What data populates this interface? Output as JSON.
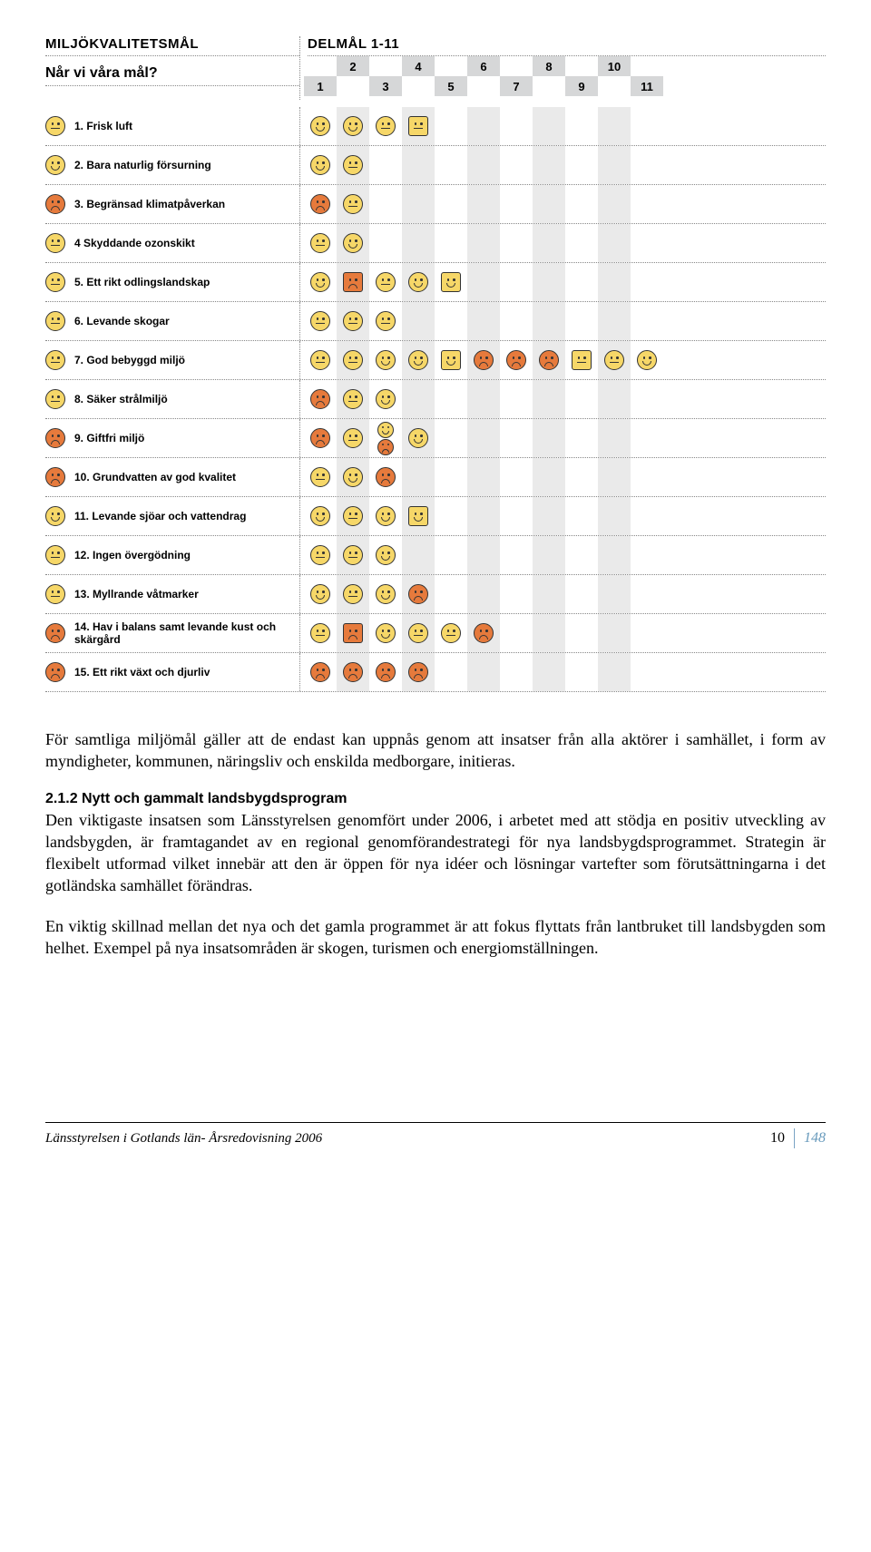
{
  "colors": {
    "yellow": "#f6d768",
    "orange": "#e67a3c",
    "stripe": "#eaeaea",
    "num_bg": "#d6d7d8",
    "divider": "#7aa3c4",
    "page_total": "#6699bb"
  },
  "chart": {
    "title_left": "MILJÖKVALITETSMÅL",
    "title_right": "DELMÅL 1-11",
    "subtitle": "Når vi våra mål?",
    "numbers_top": [
      "2",
      "4",
      "6",
      "8",
      "10"
    ],
    "numbers_bottom": [
      "1",
      "3",
      "5",
      "7",
      "9",
      "11"
    ],
    "rows": [
      {
        "label": "1. Frisk luft",
        "lead": {
          "shape": "circle",
          "color": "yellow",
          "mood": "neutral"
        },
        "cells": [
          {
            "shape": "circle",
            "color": "yellow",
            "mood": "happy"
          },
          {
            "shape": "circle",
            "color": "yellow",
            "mood": "happy"
          },
          {
            "shape": "circle",
            "color": "yellow",
            "mood": "neutral"
          },
          {
            "shape": "square",
            "color": "yellow",
            "mood": "neutral"
          }
        ]
      },
      {
        "label": "2. Bara naturlig försurning",
        "lead": {
          "shape": "circle",
          "color": "yellow",
          "mood": "happy"
        },
        "cells": [
          {
            "shape": "circle",
            "color": "yellow",
            "mood": "happy"
          },
          {
            "shape": "circle",
            "color": "yellow",
            "mood": "neutral"
          }
        ]
      },
      {
        "label": "3. Begränsad klimatpåverkan",
        "lead": {
          "shape": "circle",
          "color": "orange",
          "mood": "sad"
        },
        "cells": [
          {
            "shape": "circle",
            "color": "orange",
            "mood": "sad"
          },
          {
            "shape": "circle",
            "color": "yellow",
            "mood": "neutral"
          }
        ]
      },
      {
        "label": "4 Skyddande ozonskikt",
        "lead": {
          "shape": "circle",
          "color": "yellow",
          "mood": "neutral"
        },
        "cells": [
          {
            "shape": "circle",
            "color": "yellow",
            "mood": "neutral"
          },
          {
            "shape": "circle",
            "color": "yellow",
            "mood": "happy"
          }
        ]
      },
      {
        "label": "5. Ett rikt odlingslandskap",
        "lead": {
          "shape": "circle",
          "color": "yellow",
          "mood": "neutral"
        },
        "cells": [
          {
            "shape": "circle",
            "color": "yellow",
            "mood": "happy"
          },
          {
            "shape": "square",
            "color": "orange",
            "mood": "sad"
          },
          {
            "shape": "circle",
            "color": "yellow",
            "mood": "neutral"
          },
          {
            "shape": "circle",
            "color": "yellow",
            "mood": "happy"
          },
          {
            "shape": "square",
            "color": "yellow",
            "mood": "happy"
          }
        ]
      },
      {
        "label": "6. Levande skogar",
        "lead": {
          "shape": "circle",
          "color": "yellow",
          "mood": "neutral"
        },
        "cells": [
          {
            "shape": "circle",
            "color": "yellow",
            "mood": "neutral"
          },
          {
            "shape": "circle",
            "color": "yellow",
            "mood": "neutral"
          },
          {
            "shape": "circle",
            "color": "yellow",
            "mood": "neutral"
          }
        ]
      },
      {
        "label": "7. God bebyggd miljö",
        "lead": {
          "shape": "circle",
          "color": "yellow",
          "mood": "neutral"
        },
        "cells": [
          {
            "shape": "circle",
            "color": "yellow",
            "mood": "neutral"
          },
          {
            "shape": "circle",
            "color": "yellow",
            "mood": "neutral"
          },
          {
            "shape": "circle",
            "color": "yellow",
            "mood": "happy"
          },
          {
            "shape": "circle",
            "color": "yellow",
            "mood": "happy"
          },
          {
            "shape": "square",
            "color": "yellow",
            "mood": "happy"
          },
          {
            "shape": "circle",
            "color": "orange",
            "mood": "sad"
          },
          {
            "shape": "circle",
            "color": "orange",
            "mood": "sad"
          },
          {
            "shape": "circle",
            "color": "orange",
            "mood": "sad"
          },
          {
            "shape": "square",
            "color": "yellow",
            "mood": "neutral"
          },
          {
            "shape": "circle",
            "color": "yellow",
            "mood": "neutral"
          },
          {
            "shape": "circle",
            "color": "yellow",
            "mood": "happy"
          }
        ]
      },
      {
        "label": "8. Säker strålmiljö",
        "lead": {
          "shape": "circle",
          "color": "yellow",
          "mood": "neutral"
        },
        "cells": [
          {
            "shape": "circle",
            "color": "orange",
            "mood": "sad"
          },
          {
            "shape": "circle",
            "color": "yellow",
            "mood": "neutral"
          },
          {
            "shape": "circle",
            "color": "yellow",
            "mood": "happy"
          }
        ]
      },
      {
        "label": "9. Giftfri miljö",
        "lead": {
          "shape": "circle",
          "color": "orange",
          "mood": "sad"
        },
        "cells": [
          {
            "shape": "circle",
            "color": "orange",
            "mood": "sad"
          },
          {
            "shape": "circle",
            "color": "yellow",
            "mood": "neutral"
          },
          {
            "stack": [
              {
                "shape": "circle",
                "color": "yellow",
                "mood": "happy"
              },
              {
                "shape": "circle",
                "color": "orange",
                "mood": "sad"
              }
            ]
          },
          {
            "shape": "circle",
            "color": "yellow",
            "mood": "happy"
          }
        ]
      },
      {
        "label": "10. Grundvatten av god kvalitet",
        "lead": {
          "shape": "circle",
          "color": "orange",
          "mood": "sad"
        },
        "cells": [
          {
            "shape": "circle",
            "color": "yellow",
            "mood": "neutral"
          },
          {
            "shape": "circle",
            "color": "yellow",
            "mood": "happy"
          },
          {
            "shape": "circle",
            "color": "orange",
            "mood": "sad"
          }
        ]
      },
      {
        "label": "11. Levande sjöar och vattendrag",
        "lead": {
          "shape": "circle",
          "color": "yellow",
          "mood": "happy"
        },
        "cells": [
          {
            "shape": "circle",
            "color": "yellow",
            "mood": "happy"
          },
          {
            "shape": "circle",
            "color": "yellow",
            "mood": "neutral"
          },
          {
            "shape": "circle",
            "color": "yellow",
            "mood": "happy"
          },
          {
            "shape": "square",
            "color": "yellow",
            "mood": "happy"
          }
        ]
      },
      {
        "label": "12. Ingen övergödning",
        "lead": {
          "shape": "circle",
          "color": "yellow",
          "mood": "neutral"
        },
        "cells": [
          {
            "shape": "circle",
            "color": "yellow",
            "mood": "neutral"
          },
          {
            "shape": "circle",
            "color": "yellow",
            "mood": "neutral"
          },
          {
            "shape": "circle",
            "color": "yellow",
            "mood": "happy"
          }
        ]
      },
      {
        "label": "13. Myllrande våtmarker",
        "lead": {
          "shape": "circle",
          "color": "yellow",
          "mood": "neutral"
        },
        "cells": [
          {
            "shape": "circle",
            "color": "yellow",
            "mood": "happy"
          },
          {
            "shape": "circle",
            "color": "yellow",
            "mood": "neutral"
          },
          {
            "shape": "circle",
            "color": "yellow",
            "mood": "happy"
          },
          {
            "shape": "circle",
            "color": "orange",
            "mood": "sad"
          }
        ]
      },
      {
        "label": "14. Hav i balans samt levande kust och skärgård",
        "lead": {
          "shape": "circle",
          "color": "orange",
          "mood": "sad"
        },
        "cells": [
          {
            "shape": "circle",
            "color": "yellow",
            "mood": "neutral"
          },
          {
            "shape": "square",
            "color": "orange",
            "mood": "sad"
          },
          {
            "shape": "circle",
            "color": "yellow",
            "mood": "happy"
          },
          {
            "shape": "circle",
            "color": "yellow",
            "mood": "neutral"
          },
          {
            "shape": "circle",
            "color": "yellow",
            "mood": "neutral"
          },
          {
            "shape": "circle",
            "color": "orange",
            "mood": "sad"
          }
        ]
      },
      {
        "label": "15. Ett rikt växt och djurliv",
        "lead": {
          "shape": "circle",
          "color": "orange",
          "mood": "sad"
        },
        "cells": [
          {
            "shape": "circle",
            "color": "orange",
            "mood": "sad"
          },
          {
            "shape": "circle",
            "color": "orange",
            "mood": "sad"
          },
          {
            "shape": "circle",
            "color": "orange",
            "mood": "sad"
          },
          {
            "shape": "circle",
            "color": "orange",
            "mood": "sad"
          }
        ]
      }
    ]
  },
  "body": {
    "p1": "För samtliga miljömål gäller att de endast kan uppnås genom att insatser från alla aktörer i samhället, i form av myndigheter, kommunen, näringsliv och enskilda medborgare, initieras.",
    "h2": "2.1.2 Nytt och gammalt landsbygdsprogram",
    "p2": "Den viktigaste insatsen som Länsstyrelsen genomfört under 2006, i arbetet med att stödja en positiv utveckling av landsbygden, är framtagandet av en regional genomförandestrategi för nya landsbygdsprogrammet. Strategin är flexibelt utformad vilket innebär att den är öppen för nya idéer och lösningar vartefter som förutsättningarna i det gotländska samhället förändras.",
    "p3": "En viktig skillnad mellan det nya och det gamla programmet är att fokus flyttats från lantbruket till landsbygden som helhet. Exempel på nya insatsområden är skogen, turismen och energiomställningen."
  },
  "footer": {
    "left": "Länsstyrelsen i Gotlands län- Årsredovisning 2006",
    "page": "10",
    "total": "148"
  }
}
